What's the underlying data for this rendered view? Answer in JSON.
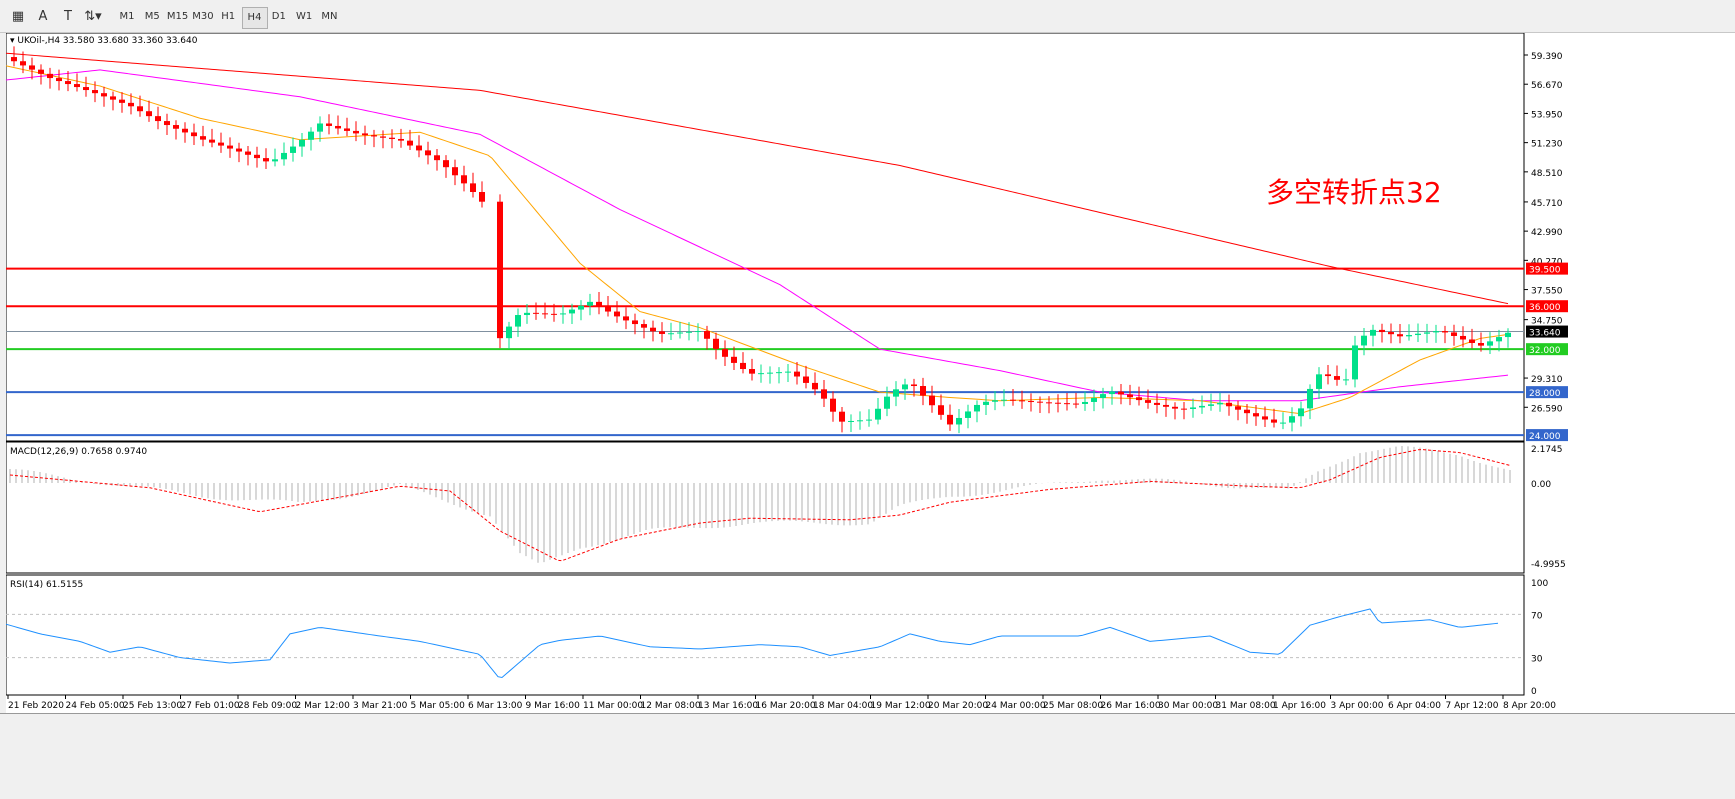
{
  "toolbar": {
    "icons": [
      "grid-icon",
      "text-icon",
      "label-icon",
      "arrows-icon"
    ],
    "timeframes": [
      "M1",
      "M5",
      "M15",
      "M30",
      "H1",
      "H4",
      "D1",
      "W1",
      "MN"
    ],
    "active": "H4"
  },
  "chart": {
    "symbol_info": "UKOil-,H4  33.580 33.680 33.360 33.640",
    "annotation": "多空转折点32",
    "annotation_color": "#ff0000",
    "price_labels": [
      "59.390",
      "56.670",
      "53.950",
      "51.230",
      "48.510",
      "45.710",
      "42.990",
      "40.270",
      "37.550",
      "34.750",
      "29.310",
      "26.590"
    ],
    "levels": [
      {
        "price": 39.5,
        "label": "39.500",
        "color": "#ff0000"
      },
      {
        "price": 36.0,
        "label": "36.000",
        "color": "#ff0000"
      },
      {
        "price": 32.0,
        "label": "32.000",
        "color": "#22cc22"
      },
      {
        "price": 28.0,
        "label": "28.000",
        "color": "#3366cc"
      },
      {
        "price": 24.0,
        "label": "24.000",
        "color": "#3366cc"
      }
    ],
    "current_price": "33.640",
    "bull_color": "#00e08a",
    "bear_color": "#ff0000",
    "closes": [
      [
        10,
        59.2
      ],
      [
        50,
        57.5
      ],
      [
        90,
        56.3
      ],
      [
        130,
        55
      ],
      [
        160,
        53.5
      ],
      [
        200,
        52
      ],
      [
        240,
        50.8
      ],
      [
        270,
        49.8
      ],
      [
        300,
        51.8
      ],
      [
        320,
        53.5
      ],
      [
        360,
        52.5
      ],
      [
        400,
        52
      ],
      [
        440,
        50
      ],
      [
        470,
        47.5
      ],
      [
        485,
        46
      ],
      [
        495,
        33
      ],
      [
        520,
        36
      ],
      [
        560,
        35.8
      ],
      [
        590,
        37
      ],
      [
        620,
        35.5
      ],
      [
        660,
        34
      ],
      [
        700,
        34.3
      ],
      [
        720,
        32.2
      ],
      [
        750,
        30.3
      ],
      [
        790,
        30.5
      ],
      [
        820,
        28.5
      ],
      [
        840,
        25.8
      ],
      [
        870,
        26
      ],
      [
        890,
        28.5
      ],
      [
        910,
        29.5
      ],
      [
        930,
        27.5
      ],
      [
        950,
        25.5
      ],
      [
        980,
        27.5
      ],
      [
        1000,
        27.8
      ],
      [
        1040,
        27.5
      ],
      [
        1080,
        27.3
      ],
      [
        1110,
        28.5
      ],
      [
        1150,
        27.3
      ],
      [
        1180,
        26.7
      ],
      [
        1220,
        27.3
      ],
      [
        1250,
        26.2
      ],
      [
        1280,
        25.2
      ],
      [
        1300,
        26.5
      ],
      [
        1310,
        28.5
      ],
      [
        1320,
        30
      ],
      [
        1345,
        29
      ],
      [
        1355,
        32.5
      ],
      [
        1370,
        34
      ],
      [
        1400,
        33.3
      ],
      [
        1440,
        33.8
      ],
      [
        1480,
        32.3
      ],
      [
        1510,
        33.6
      ]
    ],
    "ma_slow": [
      [
        0,
        59.6
      ],
      [
        480,
        56.1
      ],
      [
        900,
        49.1
      ],
      [
        1330,
        39.7
      ],
      [
        1510,
        36.2
      ]
    ],
    "ma_mid": [
      [
        0,
        57
      ],
      [
        100,
        58
      ],
      [
        300,
        55.5
      ],
      [
        480,
        52
      ],
      [
        620,
        45
      ],
      [
        780,
        38
      ],
      [
        880,
        32
      ],
      [
        1000,
        30
      ],
      [
        1100,
        28
      ],
      [
        1200,
        27.2
      ],
      [
        1300,
        27.2
      ],
      [
        1400,
        28.5
      ],
      [
        1510,
        29.6
      ]
    ],
    "ma_fast": [
      [
        0,
        58.5
      ],
      [
        100,
        56.5
      ],
      [
        200,
        53.5
      ],
      [
        300,
        51.5
      ],
      [
        420,
        52.2
      ],
      [
        490,
        50
      ],
      [
        580,
        40
      ],
      [
        640,
        35.5
      ],
      [
        700,
        34
      ],
      [
        800,
        30.5
      ],
      [
        880,
        28
      ],
      [
        950,
        27.5
      ],
      [
        1000,
        27.2
      ],
      [
        1100,
        27.5
      ],
      [
        1200,
        27.2
      ],
      [
        1300,
        26
      ],
      [
        1350,
        27.5
      ],
      [
        1420,
        31
      ],
      [
        1480,
        33
      ],
      [
        1510,
        33.4
      ]
    ],
    "ma_colors": {
      "slow": "#ff0000",
      "mid": "#ff00ff",
      "fast": "#ffa500"
    },
    "dates": [
      "21 Feb 2020",
      "24 Feb 05:00",
      "25 Feb 13:00",
      "27 Feb 01:00",
      "28 Feb 09:00",
      "2 Mar 12:00",
      "3 Mar 21:00",
      "5 Mar 05:00",
      "6 Mar 13:00",
      "9 Mar 16:00",
      "11 Mar 00:00",
      "12 Mar 08:00",
      "13 Mar 16:00",
      "16 Mar 20:00",
      "18 Mar 04:00",
      "19 Mar 12:00",
      "20 Mar 20:00",
      "24 Mar 00:00",
      "25 Mar 08:00",
      "26 Mar 16:00",
      "30 Mar 00:00",
      "31 Mar 08:00",
      "1 Apr 16:00",
      "3 Apr 00:00",
      "6 Apr 04:00",
      "7 Apr 12:00",
      "8 Apr 20:00"
    ]
  },
  "macd": {
    "label": "MACD(12,26,9) 0.7658 0.9740",
    "axis": [
      "2.1745",
      "0.00",
      "-4.9955"
    ],
    "hist": [
      [
        10,
        0.8
      ],
      [
        200,
        -0.8
      ],
      [
        300,
        -1.3
      ],
      [
        400,
        -0.2
      ],
      [
        490,
        -2
      ],
      [
        520,
        -4.5
      ],
      [
        540,
        -5.2
      ],
      [
        580,
        -4
      ],
      [
        650,
        -3
      ],
      [
        750,
        -2.5
      ],
      [
        870,
        -2.5
      ],
      [
        900,
        -1.5
      ],
      [
        950,
        -0.8
      ],
      [
        1000,
        -0.5
      ],
      [
        1100,
        0.3
      ],
      [
        1200,
        0
      ],
      [
        1290,
        -0.5
      ],
      [
        1320,
        0.8
      ],
      [
        1360,
        2
      ],
      [
        1400,
        2.2
      ],
      [
        1460,
        1.8
      ],
      [
        1510,
        0.8
      ]
    ],
    "signal": [
      [
        10,
        0.5
      ],
      [
        150,
        -0.3
      ],
      [
        260,
        -1.8
      ],
      [
        330,
        -1
      ],
      [
        400,
        -0.2
      ],
      [
        450,
        -0.5
      ],
      [
        500,
        -3
      ],
      [
        560,
        -4.9
      ],
      [
        620,
        -3.5
      ],
      [
        700,
        -2.5
      ],
      [
        750,
        -2.2
      ],
      [
        850,
        -2.3
      ],
      [
        900,
        -2
      ],
      [
        950,
        -1.2
      ],
      [
        1050,
        -0.4
      ],
      [
        1150,
        0.1
      ],
      [
        1250,
        -0.2
      ],
      [
        1300,
        -0.3
      ],
      [
        1330,
        0.2
      ],
      [
        1380,
        1.6
      ],
      [
        1420,
        2.1
      ],
      [
        1460,
        1.9
      ],
      [
        1510,
        1.1
      ]
    ]
  },
  "rsi": {
    "label": "RSI(14) 61.5155",
    "axis": [
      "100",
      "70",
      "30",
      "0"
    ],
    "values": [
      [
        2,
        62
      ],
      [
        40,
        52
      ],
      [
        80,
        45
      ],
      [
        110,
        35
      ],
      [
        140,
        40
      ],
      [
        180,
        30
      ],
      [
        230,
        25
      ],
      [
        270,
        28
      ],
      [
        290,
        52
      ],
      [
        320,
        58
      ],
      [
        380,
        50
      ],
      [
        420,
        45
      ],
      [
        480,
        33
      ],
      [
        500,
        10
      ],
      [
        540,
        42
      ],
      [
        560,
        46
      ],
      [
        600,
        50
      ],
      [
        650,
        40
      ],
      [
        700,
        38
      ],
      [
        760,
        42
      ],
      [
        800,
        40
      ],
      [
        830,
        32
      ],
      [
        880,
        40
      ],
      [
        910,
        52
      ],
      [
        940,
        45
      ],
      [
        970,
        42
      ],
      [
        1000,
        50
      ],
      [
        1080,
        50
      ],
      [
        1110,
        58
      ],
      [
        1150,
        45
      ],
      [
        1210,
        50
      ],
      [
        1250,
        35
      ],
      [
        1280,
        33
      ],
      [
        1310,
        60
      ],
      [
        1340,
        68
      ],
      [
        1370,
        75
      ],
      [
        1380,
        62
      ],
      [
        1430,
        65
      ],
      [
        1460,
        58
      ],
      [
        1500,
        62
      ]
    ]
  }
}
